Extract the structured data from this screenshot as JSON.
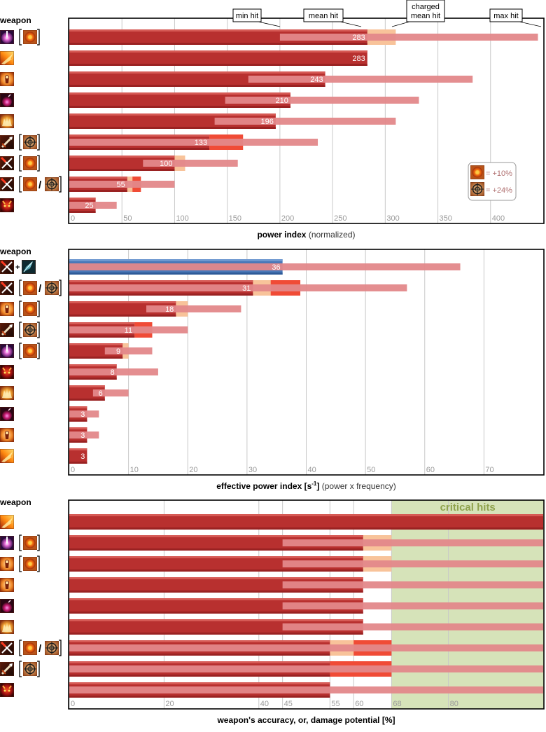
{
  "colors": {
    "bar": "#b8302f",
    "bar_hi": "#d65a55",
    "bar_lo": "#9a2222",
    "range": "#e3888a",
    "charge_ext": "#f8c39a",
    "crit_ext": "#f04b36",
    "blue": "#4a78b8",
    "crit_zone": "#d6e3b9",
    "grid": "#c8c8c8",
    "frame": "#000000",
    "axis_text": "#9a9a9a",
    "crit_text": "#8fa24d"
  },
  "icons": {
    "orb": "pink-orb-icon",
    "fire": "fire-icon",
    "torch": "torch-icon",
    "bomb": "bomb-icon",
    "burst": "burst-icon",
    "crossbow": "crossbow-icon",
    "cross": "crossed-bolt-icon",
    "demon": "demon-icon",
    "shard": "ice-shard-icon",
    "sun": "fire-rune-icon",
    "target": "target-rune-icon"
  },
  "chart_data": [
    {
      "type": "bar",
      "title": "power index",
      "title_suffix": "(normalized)",
      "row_header": "weapon",
      "xlim": [
        0,
        450
      ],
      "ticks": [
        0,
        50,
        100,
        150,
        200,
        250,
        300,
        350,
        400
      ],
      "grid": true,
      "annotations": [
        "min hit",
        "mean hit",
        "charged\nmean hit",
        "max hit"
      ],
      "legend": {
        "position": "bottom-right",
        "entries": [
          {
            "icon": "sun",
            "text": "= +10%"
          },
          {
            "icon": "target",
            "text": "= +24%"
          }
        ]
      },
      "rows": [
        {
          "weapon": "orb",
          "mods": [
            "sun"
          ],
          "value": 283,
          "min": 200,
          "max": 445,
          "charged": 310,
          "crit": null
        },
        {
          "weapon": "fire",
          "mods": [],
          "value": 283,
          "min": null,
          "max": null,
          "charged": null,
          "crit": null
        },
        {
          "weapon": "torch",
          "mods": [],
          "value": 243,
          "min": 170,
          "max": 383,
          "charged": null,
          "crit": null
        },
        {
          "weapon": "bomb",
          "mods": [],
          "value": 210,
          "min": 148,
          "max": 332,
          "charged": null,
          "crit": null
        },
        {
          "weapon": "burst",
          "mods": [],
          "value": 196,
          "min": 138,
          "max": 310,
          "charged": null,
          "crit": null
        },
        {
          "weapon": "crossbow",
          "mods": [
            "target"
          ],
          "value": 133,
          "min": 0,
          "max": 236,
          "charged": null,
          "crit": 165
        },
        {
          "weapon": "cross",
          "mods": [
            "sun"
          ],
          "value": 100,
          "min": 70,
          "max": 160,
          "charged": 110,
          "crit": null
        },
        {
          "weapon": "cross",
          "mods": [
            "sun",
            "target"
          ],
          "value": 55,
          "min": 0,
          "max": 100,
          "charged": 60,
          "crit": 68
        },
        {
          "weapon": "demon",
          "mods": [],
          "value": 25,
          "min": 0,
          "max": 45,
          "charged": null,
          "crit": null
        }
      ]
    },
    {
      "type": "bar",
      "title": "effective power index [s",
      "title_sup": "-1",
      "title_close": "]",
      "title_suffix": "(power x frequency)",
      "row_header": "weapon",
      "xlim": [
        0,
        80
      ],
      "ticks": [
        0,
        10,
        20,
        30,
        40,
        50,
        60,
        70
      ],
      "grid": true,
      "plus_sign": "+",
      "slash": "/",
      "rows": [
        {
          "weapon": "cross",
          "extra": "shard",
          "mods": [],
          "value": 36,
          "min": 0,
          "max": 66,
          "blue": true,
          "charged": null,
          "crit": null
        },
        {
          "weapon": "cross",
          "mods": [
            "sun",
            "target"
          ],
          "value": 31,
          "min": 0,
          "max": 57,
          "charged": 34,
          "crit": 39
        },
        {
          "weapon": "torch",
          "mods": [
            "sun"
          ],
          "value": 18,
          "min": 13,
          "max": 29,
          "charged": 20,
          "crit": null
        },
        {
          "weapon": "crossbow",
          "mods": [
            "target"
          ],
          "value": 11,
          "min": 0,
          "max": 20,
          "charged": null,
          "crit": 14
        },
        {
          "weapon": "orb",
          "mods": [
            "sun"
          ],
          "value": 9,
          "min": 6,
          "max": 14,
          "charged": 10,
          "crit": null
        },
        {
          "weapon": "demon",
          "mods": [],
          "value": 8,
          "min": 0,
          "max": 15,
          "charged": null,
          "crit": null
        },
        {
          "weapon": "burst",
          "mods": [],
          "value": 6,
          "min": 4,
          "max": 10,
          "charged": null,
          "crit": null
        },
        {
          "weapon": "bomb",
          "mods": [],
          "value": 3,
          "min": 0,
          "max": 5,
          "charged": null,
          "crit": null
        },
        {
          "weapon": "torch",
          "mods": [],
          "value": 3,
          "min": 0,
          "max": 5,
          "charged": null,
          "crit": null
        },
        {
          "weapon": "fire",
          "mods": [],
          "value": 3,
          "min": null,
          "max": null,
          "charged": null,
          "crit": null
        }
      ]
    },
    {
      "type": "bar",
      "title": "weapon's  accuracy, or, damage potential [%]",
      "row_header": "weapon",
      "xlim": [
        0,
        100
      ],
      "ticks": [
        0,
        20,
        40,
        45,
        55,
        60,
        68,
        80
      ],
      "grid": true,
      "crit_label": "critical hits",
      "crit_from": 68,
      "rows": [
        {
          "weapon": "fire",
          "mods": [],
          "value": 100,
          "min": null,
          "max": null,
          "charged": null,
          "crit": null,
          "crit_band": false
        },
        {
          "weapon": "orb",
          "mods": [
            "sun"
          ],
          "value": 62,
          "min": 45,
          "max": 100,
          "charged": 68,
          "crit": null,
          "crit_band": true
        },
        {
          "weapon": "torch",
          "mods": [
            "sun"
          ],
          "value": 62,
          "min": 45,
          "max": 100,
          "charged": 68,
          "crit": null,
          "crit_band": true
        },
        {
          "weapon": "torch",
          "mods": [],
          "value": 62,
          "min": 45,
          "max": 100,
          "charged": null,
          "crit": null,
          "crit_band": true
        },
        {
          "weapon": "bomb",
          "mods": [],
          "value": 62,
          "min": 45,
          "max": 100,
          "charged": null,
          "crit": null,
          "crit_band": false
        },
        {
          "weapon": "burst",
          "mods": [],
          "value": 62,
          "min": 45,
          "max": 100,
          "charged": null,
          "crit": null,
          "crit_band": true
        },
        {
          "weapon": "cross",
          "mods": [
            "sun",
            "target"
          ],
          "value": 55,
          "min": 0,
          "max": 100,
          "charged": 60,
          "crit": 68,
          "crit_band": true
        },
        {
          "weapon": "crossbow",
          "mods": [
            "target"
          ],
          "value": 55,
          "min": 0,
          "max": 100,
          "charged": null,
          "crit": 68,
          "crit_band": true
        },
        {
          "weapon": "demon",
          "mods": [],
          "value": 55,
          "min": 0,
          "max": 100,
          "charged": null,
          "crit": null,
          "crit_band": true
        }
      ]
    }
  ]
}
